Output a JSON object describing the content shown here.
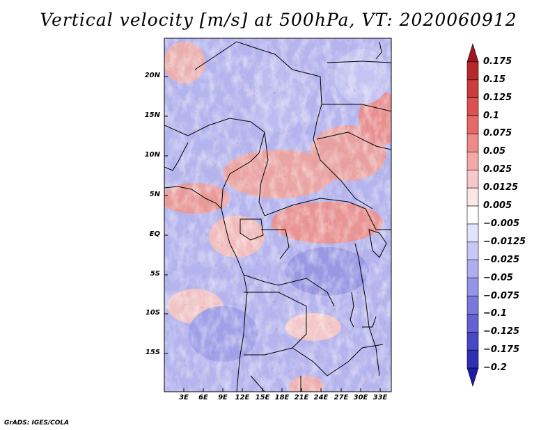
{
  "title": "Vertical velocity [m/s] at 500hPa, VT: 2020060912",
  "credit": "GrADS: IGES/COLA",
  "map": {
    "lat_labels": [
      "20N",
      "15N",
      "10N",
      "5N",
      "EQ",
      "5S",
      "10S",
      "15S"
    ],
    "lon_labels": [
      "3E",
      "6E",
      "9E",
      "12E",
      "15E",
      "18E",
      "21E",
      "24E",
      "27E",
      "30E",
      "33E"
    ]
  },
  "colorbar": {
    "labels": [
      "0.175",
      "0.15",
      "0.125",
      "0.1",
      "0.075",
      "0.05",
      "0.025",
      "0.0125",
      "0.005",
      "−0.005",
      "−0.0125",
      "−0.025",
      "−0.05",
      "−0.075",
      "−0.1",
      "−0.125",
      "−0.175",
      "−0.2"
    ],
    "colors": [
      "#a0141e",
      "#b82828",
      "#cc3c3c",
      "#dc5050",
      "#e66a6a",
      "#ee8a8a",
      "#f4a8a8",
      "#f8c8c8",
      "#fce6e6",
      "#ffffff",
      "#e2e2fa",
      "#c8c8f6",
      "#aeaef0",
      "#9494e8",
      "#7a7ade",
      "#6262d2",
      "#4848c4",
      "#3030b4",
      "#1c1ca4"
    ]
  }
}
